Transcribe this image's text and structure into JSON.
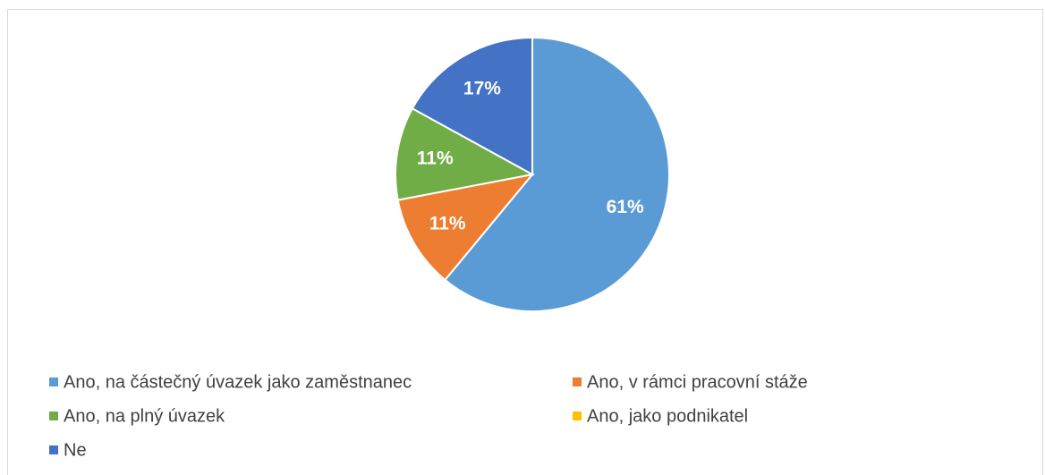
{
  "chart_data": {
    "type": "pie",
    "categories": [
      "Ano, na částečný úvazek jako zaměstnanec",
      "Ano, v rámci pracovní stáže",
      "Ano, na plný úvazek",
      "Ano, jako podnikatel",
      "Ne"
    ],
    "values": [
      61,
      11,
      11,
      0,
      17
    ],
    "value_labels": [
      "61%",
      "11%",
      "11%",
      null,
      "17%"
    ],
    "colors": [
      "#5b9bd5",
      "#ed7d31",
      "#70ad47",
      "#ffc000",
      "#4472c4"
    ],
    "legend": "bottom"
  }
}
